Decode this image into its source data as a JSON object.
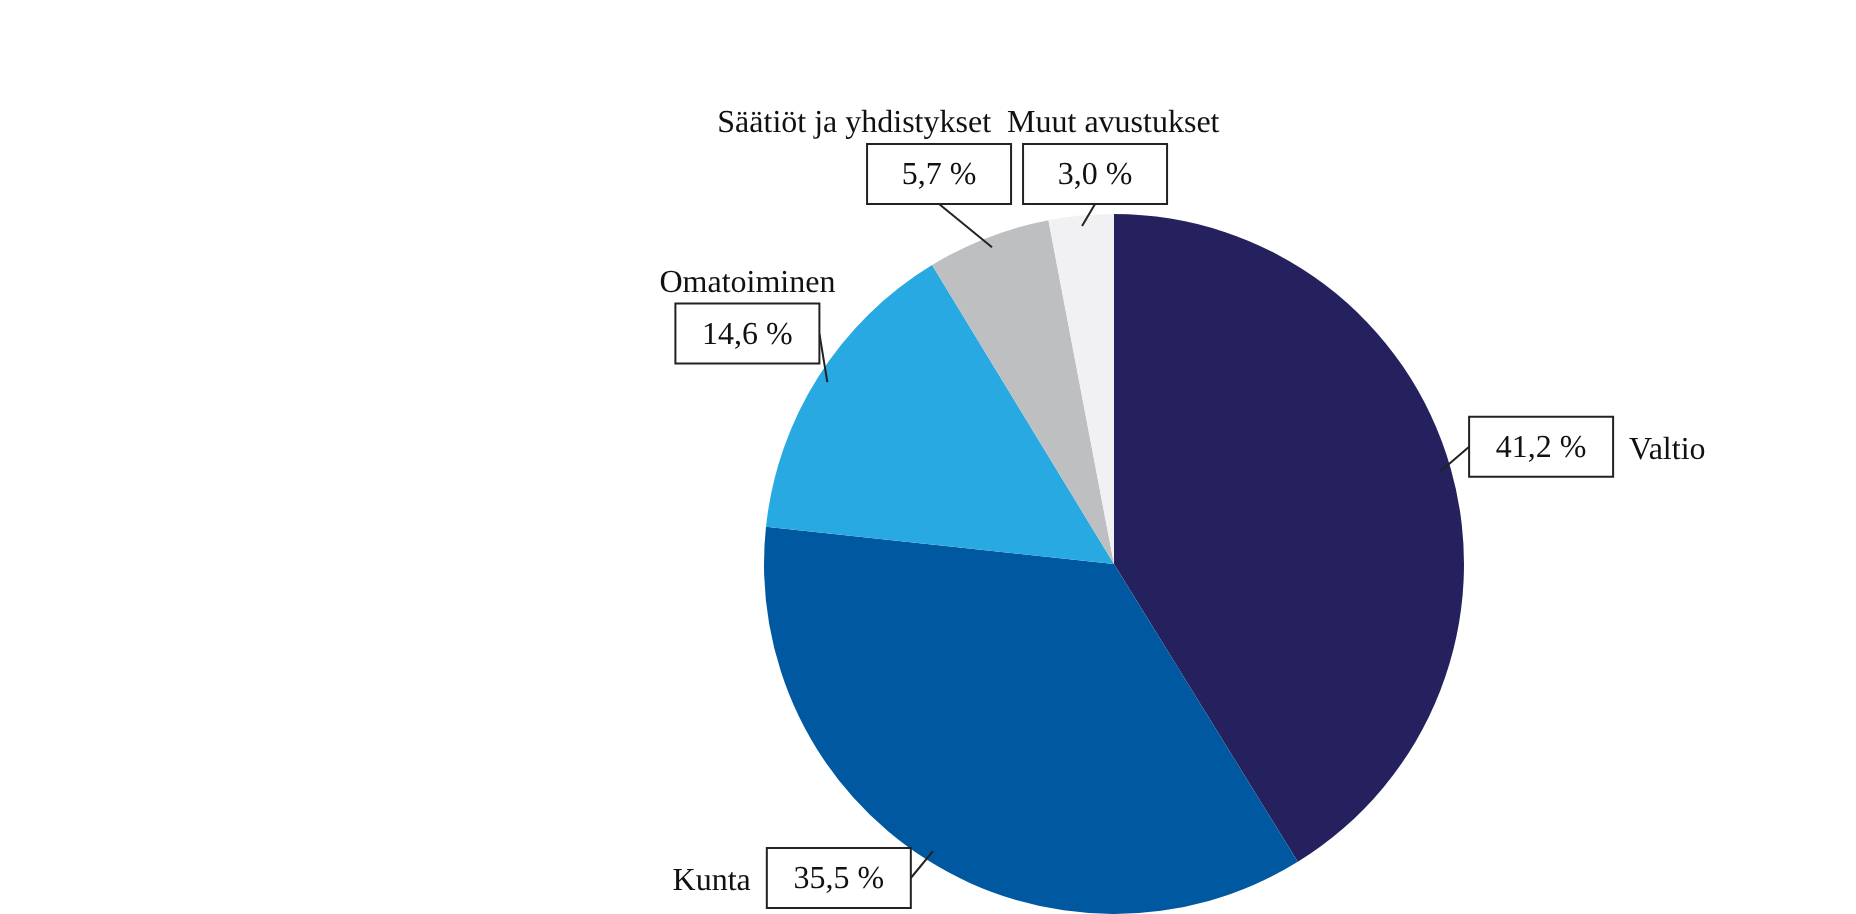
{
  "chart_data": {
    "type": "pie",
    "categories": [
      "Valtio",
      "Kunta",
      "Omatoiminen",
      "Säätiöt ja yhdistykset",
      "Muut avustukset"
    ],
    "values": [
      41.2,
      35.5,
      14.6,
      5.7,
      3.0
    ],
    "colors": [
      "#25215e",
      "#0059a0",
      "#28a9e1",
      "#bdbfc1",
      "#f1f1f3"
    ],
    "value_labels": [
      "41,2 %",
      "35,5 %",
      "14,6 %",
      "5,7 %",
      "3,0 %"
    ]
  }
}
